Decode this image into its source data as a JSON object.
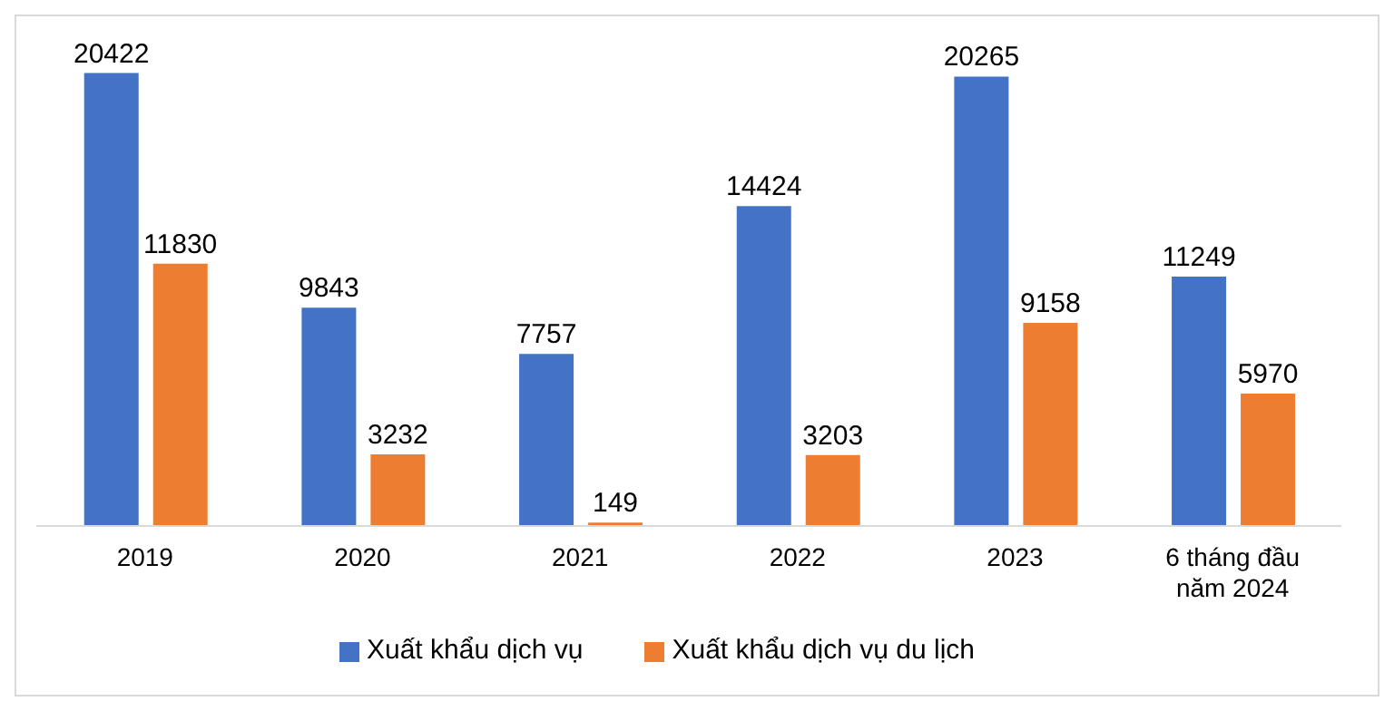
{
  "chart_data": {
    "type": "bar",
    "categories": [
      "2019",
      "2020",
      "2021",
      "2022",
      "2023",
      "6 tháng đầu năm 2024"
    ],
    "series": [
      {
        "name": "Xuất khẩu dịch vụ",
        "color": "#4472c4",
        "values": [
          20422,
          9843,
          7757,
          14424,
          20265,
          11249
        ]
      },
      {
        "name": "Xuất khẩu dịch vụ du lịch",
        "color": "#ed7d31",
        "values": [
          11830,
          3232,
          149,
          3203,
          9158,
          5970
        ]
      }
    ],
    "tick_labels": "x",
    "data_labels": true,
    "legend": "bottom"
  }
}
